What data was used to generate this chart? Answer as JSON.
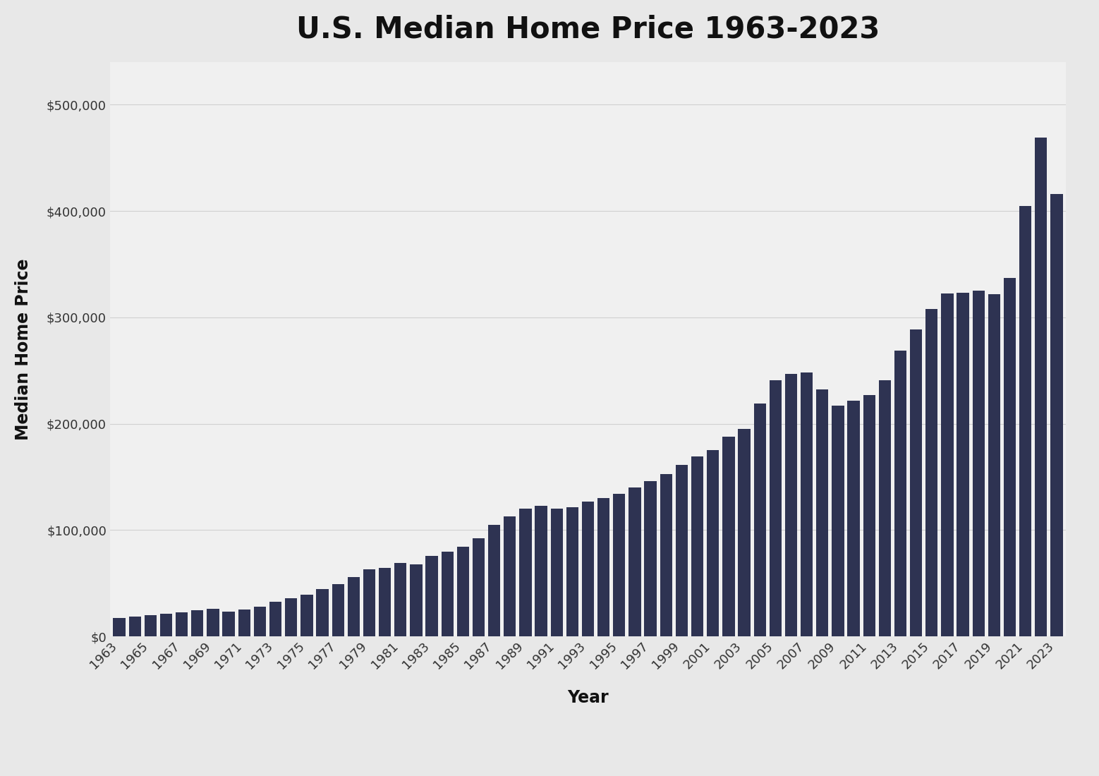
{
  "title": "U.S. Median Home Price 1963-2023",
  "xlabel": "Year",
  "ylabel": "Median Home Price",
  "outer_bg_color": "#e8e8e8",
  "plot_bg_color": "#f0f0f0",
  "bar_color": "#2e3352",
  "years": [
    1963,
    1964,
    1965,
    1966,
    1967,
    1968,
    1969,
    1970,
    1971,
    1972,
    1973,
    1974,
    1975,
    1976,
    1977,
    1978,
    1979,
    1980,
    1981,
    1982,
    1983,
    1984,
    1985,
    1986,
    1987,
    1988,
    1989,
    1990,
    1991,
    1992,
    1993,
    1994,
    1995,
    1996,
    1997,
    1998,
    1999,
    2000,
    2001,
    2002,
    2003,
    2004,
    2005,
    2006,
    2007,
    2008,
    2009,
    2010,
    2011,
    2012,
    2013,
    2014,
    2015,
    2016,
    2017,
    2018,
    2019,
    2020,
    2021,
    2022,
    2023
  ],
  "prices": [
    17200,
    18900,
    20000,
    21400,
    22700,
    24700,
    25600,
    23400,
    25200,
    27600,
    32500,
    35800,
    39300,
    44200,
    48800,
    55700,
    62900,
    64600,
    68900,
    67800,
    75300,
    79900,
    84300,
    92000,
    104500,
    112500,
    120000,
    122900,
    120000,
    121500,
    126500,
    130000,
    133900,
    140000,
    145800,
    152500,
    161000,
    169000,
    175200,
    187600,
    195000,
    219000,
    240900,
    246500,
    247900,
    232100,
    216700,
    221800,
    226700,
    240700,
    268900,
    288900,
    307500,
    322500,
    323100,
    325000,
    321500,
    336900,
    404700,
    468700,
    416100
  ],
  "yticks": [
    0,
    100000,
    200000,
    300000,
    400000,
    500000
  ],
  "ylim": [
    0,
    540000
  ],
  "title_fontsize": 30,
  "axis_label_fontsize": 17,
  "tick_fontsize": 13,
  "title_fontweight": "bold",
  "xlabel_fontweight": "bold",
  "ylabel_fontweight": "bold",
  "grid_color": "#d0d0d0",
  "tick_label_color": "#333333"
}
